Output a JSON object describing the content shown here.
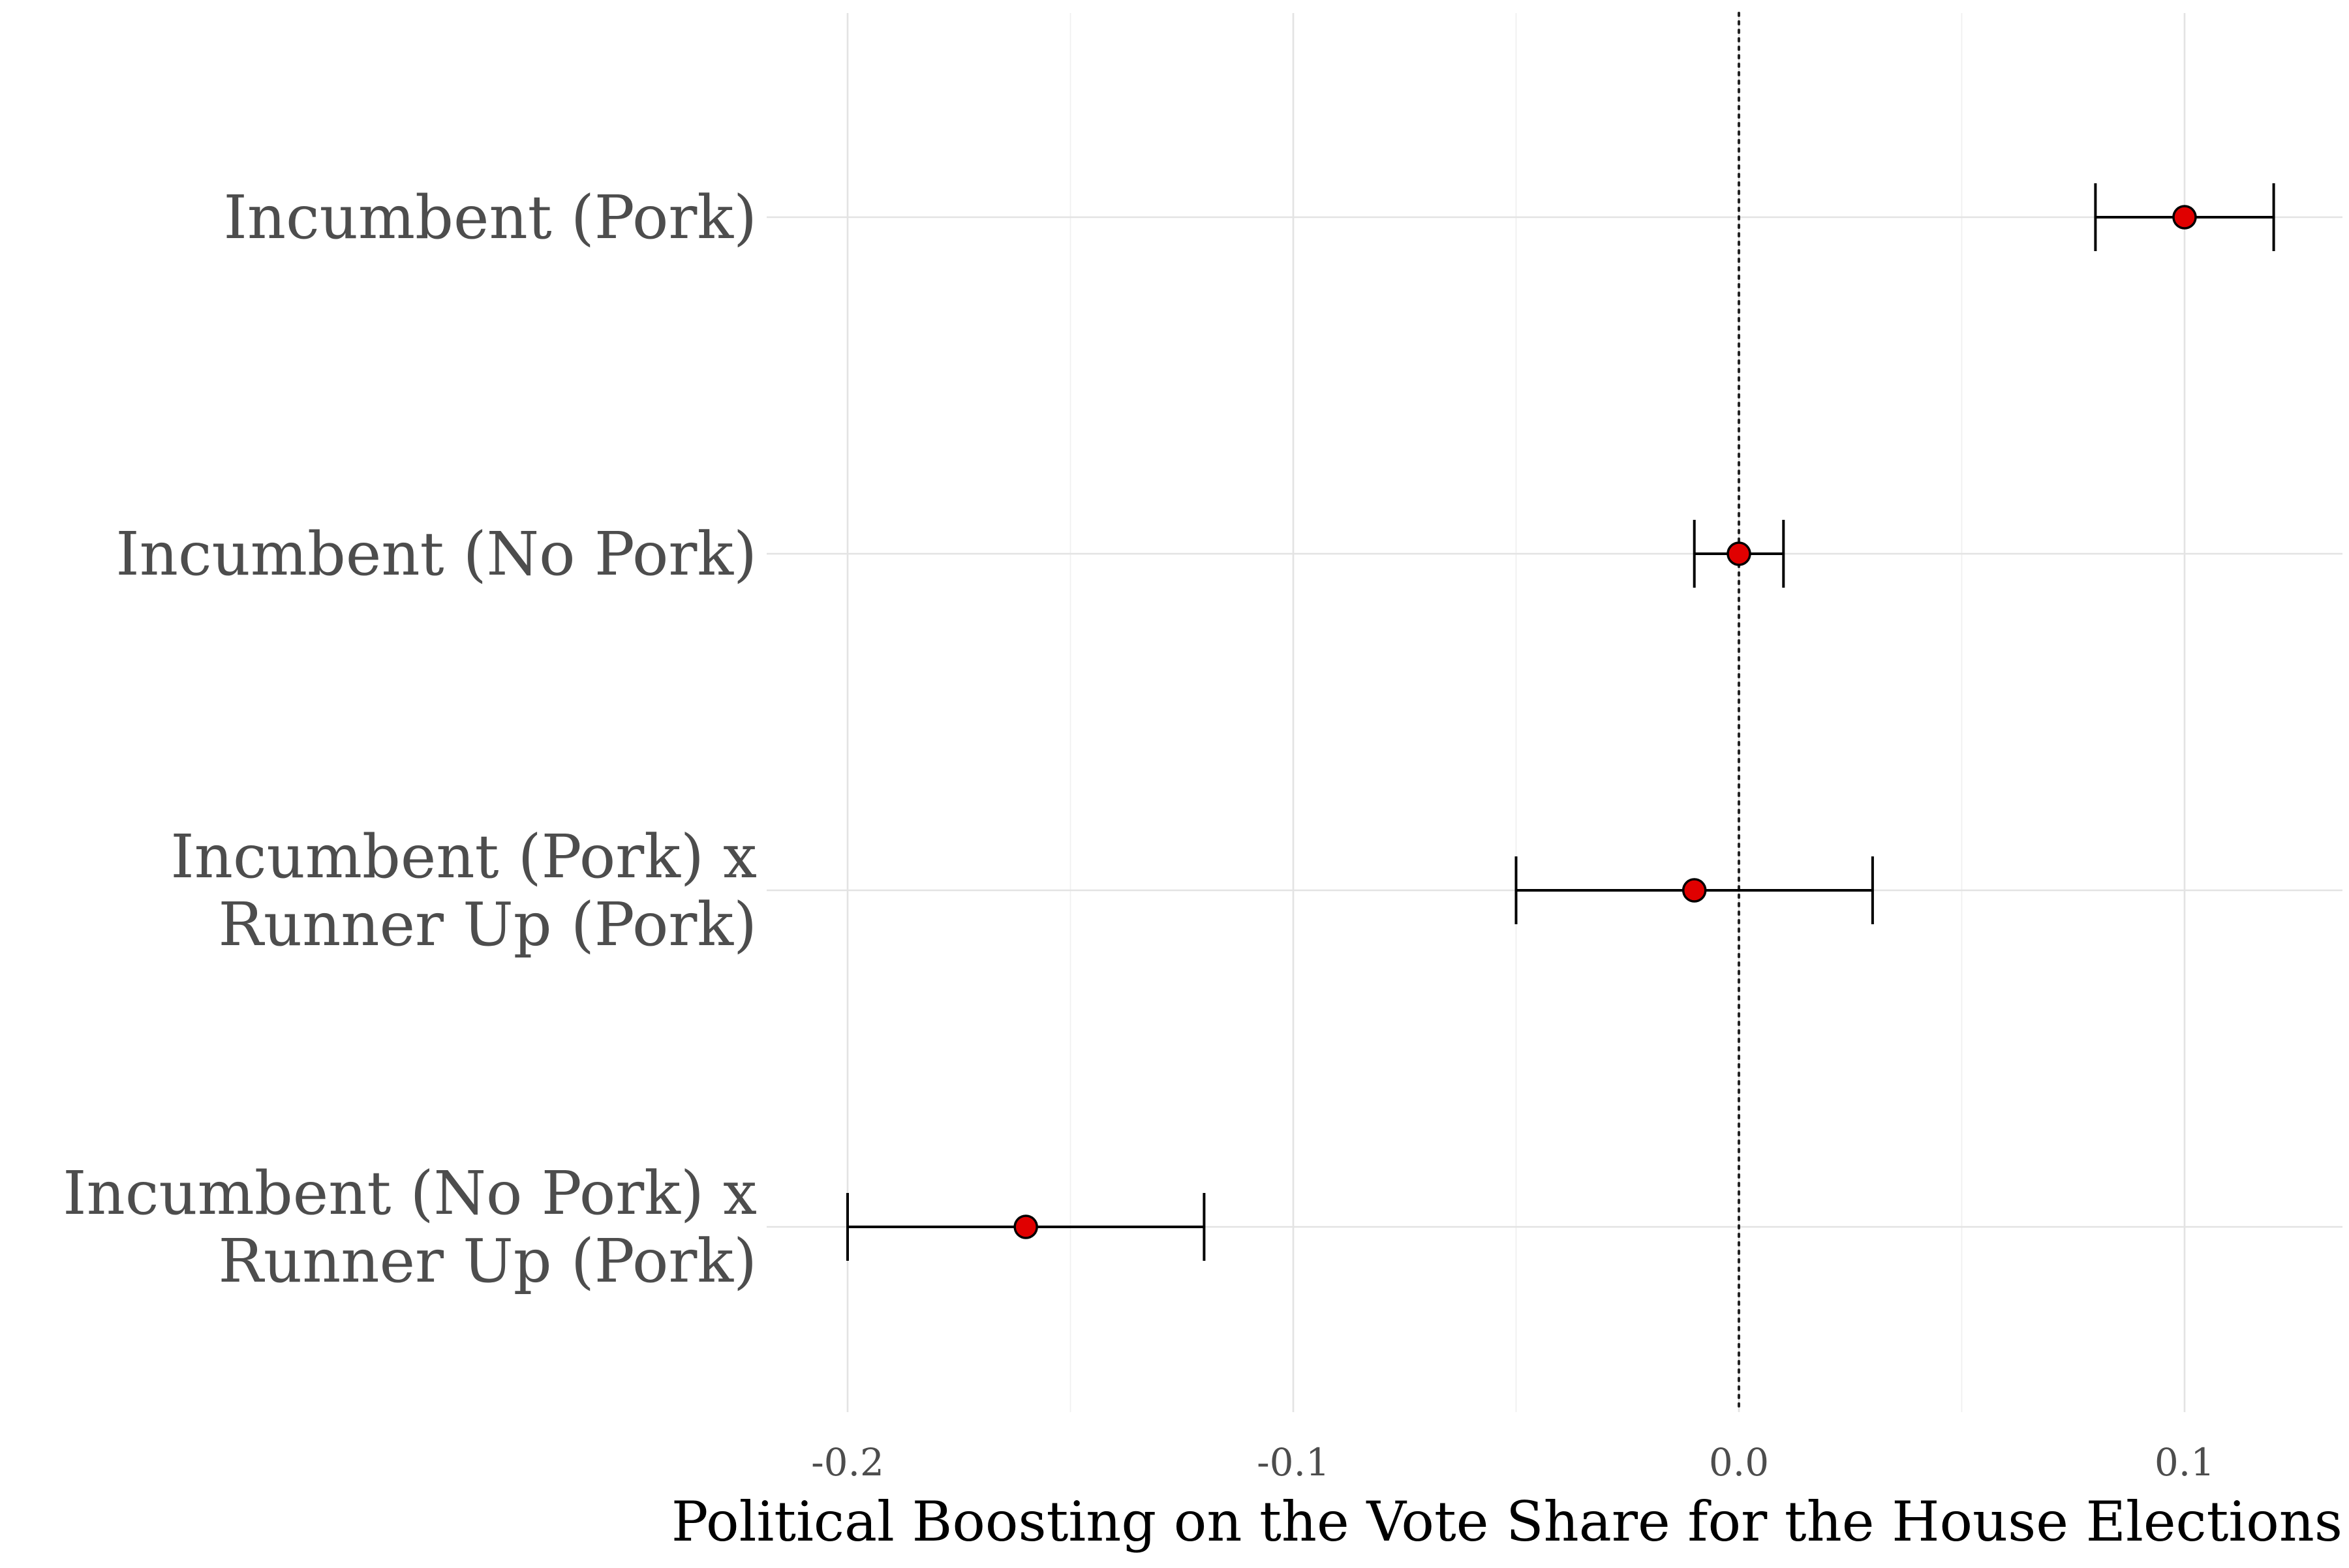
{
  "chart_data": {
    "type": "scatter",
    "subtype": "coefficient-plot-with-error-bars",
    "title": "",
    "xlabel": "Political Boosting on the Vote Share for the House Elections",
    "ylabel": "",
    "xlim": [
      -0.22,
      0.135
    ],
    "x_ticks": [
      -0.2,
      -0.1,
      0.0,
      0.1
    ],
    "x_tick_labels": [
      "-0.2",
      "-0.1",
      "0.0",
      "0.1"
    ],
    "grid": true,
    "reference_line": {
      "x": 0,
      "style": "dotted"
    },
    "point_color": "#e00000",
    "categories": [
      {
        "lines": [
          "Incumbent (Pork)"
        ],
        "estimate": 0.1,
        "ci_low": 0.08,
        "ci_high": 0.12
      },
      {
        "lines": [
          "Incumbent (No Pork)"
        ],
        "estimate": 0.0,
        "ci_low": -0.01,
        "ci_high": 0.01
      },
      {
        "lines": [
          "Incumbent (Pork) x",
          "Runner Up (Pork)"
        ],
        "estimate": -0.01,
        "ci_low": -0.05,
        "ci_high": 0.03
      },
      {
        "lines": [
          "Incumbent (No Pork) x",
          "Runner Up (Pork)"
        ],
        "estimate": -0.16,
        "ci_low": -0.2,
        "ci_high": -0.12
      }
    ]
  }
}
